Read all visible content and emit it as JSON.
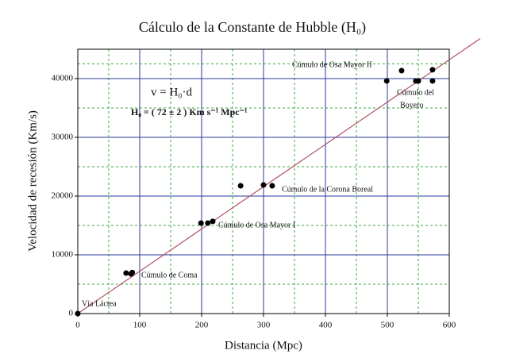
{
  "chart_data": {
    "type": "scatter",
    "title": "Cálculo de la Constante de Hubble (H₀)",
    "x_label": "Distancia (Mpc)",
    "y_label": "Velocidad de recesión (Km/s)",
    "x": [
      0,
      78,
      86,
      88,
      199,
      210,
      218,
      263,
      300,
      314,
      499,
      523,
      546,
      550,
      573,
      573
    ],
    "y": [
      0,
      6900,
      6750,
      7000,
      15400,
      15400,
      15700,
      21750,
      21900,
      21750,
      39600,
      41350,
      39600,
      39600,
      41500,
      39600
    ],
    "color": "#000000",
    "fit": {
      "x": [
        0,
        650
      ],
      "y": [
        0,
        46800
      ],
      "color": "#b05060"
    },
    "xlim": [
      0,
      600
    ],
    "xticks": [
      0,
      100,
      200,
      300,
      400,
      500,
      600
    ],
    "ylim": [
      0,
      45000
    ],
    "yticks": [
      0,
      10000,
      20000,
      30000,
      40000
    ],
    "grid": true,
    "annotations": [
      "v = H₀·d",
      "H₀ = ( 72 ± 2 ) Km s⁻¹ Mpc⁻¹",
      "Vía Láctea",
      "Cúmulo de Coma",
      "Cúmulo de Osa Mayor I",
      "Cúmulo de la Corona Boreal",
      "Cúmulo de Osa Mayor II",
      "Cúmulo del",
      "Boyero"
    ]
  }
}
